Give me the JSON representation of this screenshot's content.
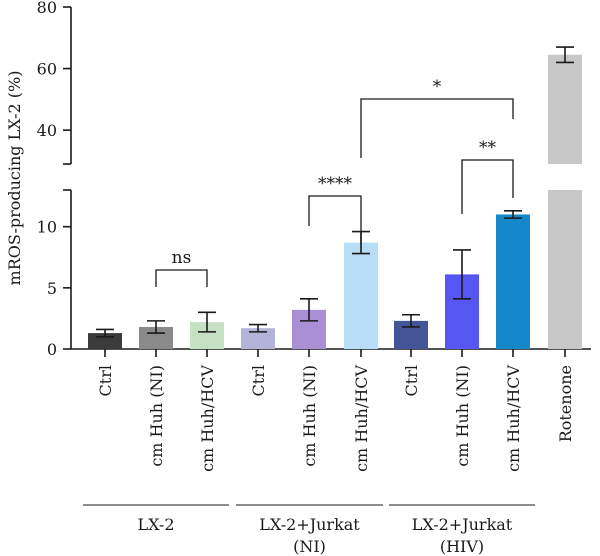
{
  "chart_data": {
    "type": "bar",
    "ylabel": "mROS-producing LX-2 (%)",
    "y_axis_break": {
      "lower_range": [
        0,
        13
      ],
      "upper_range": [
        29,
        80
      ]
    },
    "yticks_lower": [
      "0",
      "5",
      "10"
    ],
    "yticks_upper": [
      "40",
      "60",
      "80"
    ],
    "ytick_values_lower": [
      0,
      5,
      10
    ],
    "ytick_values_upper": [
      40,
      60,
      80
    ],
    "categories": [
      "Ctrl",
      "cm Huh (NI)",
      "cm Huh/HCV",
      "Ctrl",
      "cm Huh (NI)",
      "cm Huh/HCV",
      "Ctrl",
      "cm Huh (NI)",
      "cm Huh/HCV",
      "Rotenone"
    ],
    "values": [
      1.3,
      1.8,
      2.2,
      1.7,
      3.2,
      8.7,
      2.3,
      6.1,
      11.0,
      64.5
    ],
    "errors": [
      0.3,
      0.5,
      0.8,
      0.3,
      0.9,
      0.9,
      0.5,
      2.0,
      0.3,
      2.5
    ],
    "colors": [
      "#3b3b3b",
      "#8a8a8a",
      "#c5e0c2",
      "#b3b3d9",
      "#a98fd3",
      "#b8def7",
      "#445597",
      "#5656f2",
      "#1488c8",
      "#c8c8c8"
    ],
    "groups": [
      {
        "label_lines": [
          "LX-2"
        ],
        "start": 0,
        "end": 2
      },
      {
        "label_lines": [
          "LX-2+Jurkat",
          "(NI)"
        ],
        "start": 3,
        "end": 5
      },
      {
        "label_lines": [
          "LX-2+Jurkat",
          "(HIV)"
        ],
        "start": 6,
        "end": 8
      }
    ],
    "significance": [
      {
        "from": 1,
        "to": 2,
        "label": "ns"
      },
      {
        "from": 4,
        "to": 5,
        "label": "****"
      },
      {
        "from": 7,
        "to": 8,
        "label": "**"
      },
      {
        "from": 5,
        "to": 8,
        "label": "*"
      }
    ]
  }
}
